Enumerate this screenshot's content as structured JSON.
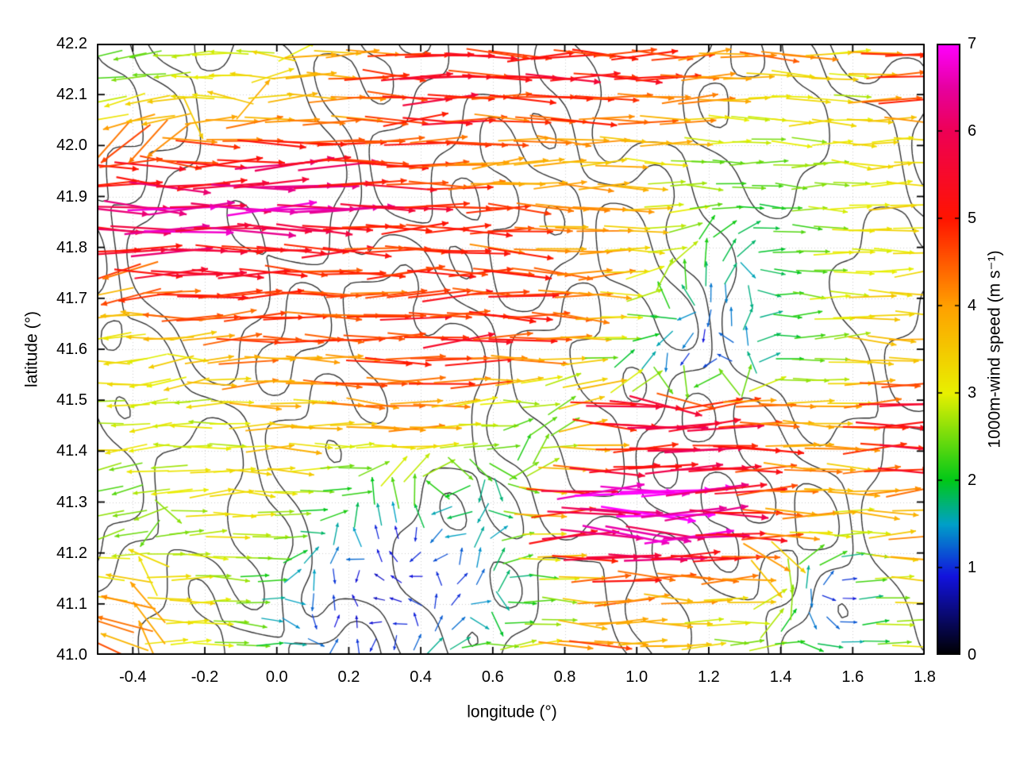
{
  "chart_data": {
    "type": "quiver",
    "title": "",
    "xlabel": "longitude (°)",
    "ylabel": "latitude (°)",
    "xlim": [
      -0.5,
      1.8
    ],
    "ylim": [
      41.0,
      42.2
    ],
    "grid": true,
    "xticks": [
      {
        "v": -0.4,
        "label": "-0.4"
      },
      {
        "v": -0.2,
        "label": "-0.2"
      },
      {
        "v": 0.0,
        "label": "0.0"
      },
      {
        "v": 0.2,
        "label": "0.2"
      },
      {
        "v": 0.4,
        "label": "0.4"
      },
      {
        "v": 0.6,
        "label": "0.6"
      },
      {
        "v": 0.8,
        "label": "0.8"
      },
      {
        "v": 1.0,
        "label": "1.0"
      },
      {
        "v": 1.2,
        "label": "1.2"
      },
      {
        "v": 1.4,
        "label": "1.4"
      },
      {
        "v": 1.6,
        "label": "1.6"
      },
      {
        "v": 1.8,
        "label": "1.8"
      }
    ],
    "yticks": [
      {
        "v": 41.0,
        "label": "41.0"
      },
      {
        "v": 41.1,
        "label": "41.1"
      },
      {
        "v": 41.2,
        "label": "41.2"
      },
      {
        "v": 41.3,
        "label": "41.3"
      },
      {
        "v": 41.4,
        "label": "41.4"
      },
      {
        "v": 41.5,
        "label": "41.5"
      },
      {
        "v": 41.6,
        "label": "41.6"
      },
      {
        "v": 41.7,
        "label": "41.7"
      },
      {
        "v": 41.8,
        "label": "41.8"
      },
      {
        "v": 41.9,
        "label": "41.9"
      },
      {
        "v": 42.0,
        "label": "42.0"
      },
      {
        "v": 42.1,
        "label": "42.1"
      },
      {
        "v": 42.2,
        "label": "42.2"
      }
    ],
    "colorbar": {
      "label": "1000m-wind speed (m s⁻¹)",
      "min": 0,
      "max": 7,
      "ticks": [
        {
          "v": 0,
          "label": "0"
        },
        {
          "v": 1,
          "label": "1"
        },
        {
          "v": 2,
          "label": "2"
        },
        {
          "v": 3,
          "label": "3"
        },
        {
          "v": 4,
          "label": "4"
        },
        {
          "v": 5,
          "label": "5"
        },
        {
          "v": 6,
          "label": "6"
        },
        {
          "v": 7,
          "label": "7"
        }
      ],
      "stops": [
        [
          0,
          "#000000"
        ],
        [
          0.9,
          "#1212dd"
        ],
        [
          1.5,
          "#00a0c8"
        ],
        [
          2,
          "#00c818"
        ],
        [
          3,
          "#e8f000"
        ],
        [
          4,
          "#ffa000"
        ],
        [
          5,
          "#ff1400"
        ],
        [
          6,
          "#ee0055"
        ],
        [
          6.5,
          "#e600a0"
        ],
        [
          7,
          "#ff00ff"
        ]
      ]
    },
    "contour_color": "#2e2e2e",
    "contour_levels": 3,
    "wind_grid": {
      "nx": 24,
      "ny": 16,
      "rows_north_to_south": true,
      "dir_convention": "0=east, 90=north",
      "speed_ms": [
        [
          2.5,
          2.2,
          2.5,
          3,
          3,
          3,
          3.5,
          4,
          4.5,
          4.5,
          5,
          5,
          4.5,
          4.5,
          5,
          5,
          4.5,
          4,
          4,
          4.5,
          4,
          3.5,
          5,
          5
        ],
        [
          2,
          2.5,
          3,
          3,
          3.5,
          3.5,
          4,
          4,
          5,
          5.5,
          5.5,
          5,
          5,
          5.5,
          5,
          5,
          4.5,
          4,
          3.5,
          3.5,
          3,
          3,
          4.5,
          5
        ],
        [
          3.5,
          4,
          4,
          4,
          4,
          4,
          4,
          4,
          4.5,
          5,
          5,
          4.5,
          4.5,
          4.5,
          4.5,
          4,
          4,
          3.5,
          3,
          3,
          3,
          3,
          3.5,
          4
        ],
        [
          4.5,
          5,
          5,
          5,
          5.5,
          6,
          6,
          5.5,
          5,
          4.5,
          4,
          4,
          4,
          4,
          3.5,
          3.5,
          3,
          2.5,
          2.5,
          2.5,
          2.5,
          3,
          3,
          3.5
        ],
        [
          5.5,
          6,
          6.5,
          6,
          6,
          6.5,
          6,
          6,
          5.5,
          5.5,
          5,
          4.5,
          4.5,
          4,
          4,
          3.5,
          3,
          2.5,
          2,
          2,
          2.5,
          3,
          3.5,
          3.5
        ],
        [
          5,
          5.5,
          6,
          6,
          5.5,
          5.5,
          5.5,
          5,
          5,
          5,
          5,
          4.5,
          4.5,
          4,
          4,
          3.5,
          3,
          2,
          2,
          2,
          2.5,
          3,
          3,
          3
        ],
        [
          4,
          4.5,
          5,
          5,
          5,
          5,
          5,
          4.5,
          4.5,
          5,
          5,
          5,
          5,
          4.5,
          4,
          3,
          2,
          1.5,
          1.5,
          2,
          2.5,
          3,
          3.5,
          3.5
        ],
        [
          3.5,
          3.5,
          4,
          4,
          4.5,
          4.5,
          4.5,
          4.5,
          5,
          5,
          5,
          5,
          5,
          4.5,
          3.5,
          2.5,
          1.5,
          1,
          1.5,
          2,
          2.5,
          3,
          3.5,
          4
        ],
        [
          3,
          3,
          3,
          3.5,
          4,
          4,
          4,
          4.5,
          4.5,
          5,
          5,
          4.5,
          4,
          3.5,
          2.5,
          1.5,
          1,
          1,
          1.5,
          2,
          2.5,
          3,
          3.5,
          3.5
        ],
        [
          3,
          3,
          3,
          3,
          3.5,
          3.5,
          3.5,
          4,
          4,
          4,
          3.5,
          3,
          2.5,
          2,
          5.5,
          6,
          6,
          5.5,
          5,
          4.5,
          4,
          3.5,
          5.5,
          6
        ],
        [
          3,
          3,
          3,
          3,
          3,
          3.5,
          3.5,
          3,
          3,
          3.5,
          3,
          2.5,
          2,
          3,
          4,
          4.5,
          5,
          5.5,
          5,
          4.5,
          4,
          4,
          5,
          5.5
        ],
        [
          2.5,
          2.5,
          3,
          3,
          3,
          3,
          2.5,
          2,
          2,
          2.5,
          2,
          1.5,
          3,
          5,
          6.5,
          7,
          7,
          6.5,
          5.5,
          4.5,
          4,
          3.5,
          4,
          4.5
        ],
        [
          2.5,
          2.5,
          2.5,
          3,
          3,
          2.5,
          2,
          1.5,
          1,
          1,
          1.5,
          1.5,
          2.5,
          5,
          6.5,
          7,
          6.5,
          6,
          5,
          4,
          3.5,
          3,
          3.5,
          4
        ],
        [
          3,
          3.5,
          3.5,
          3,
          2.5,
          2,
          1.5,
          1,
          0.8,
          1,
          1,
          1.5,
          2,
          3,
          4.5,
          5,
          5,
          4.5,
          4,
          3.5,
          1.5,
          1,
          3,
          3.5
        ],
        [
          4,
          4,
          3.5,
          3,
          2.5,
          1.5,
          1,
          0.8,
          0.8,
          1,
          1,
          1.5,
          2,
          2.5,
          3.5,
          4,
          3.5,
          3,
          3,
          2.5,
          1,
          1,
          2.5,
          3
        ],
        [
          4.5,
          4,
          3.5,
          3,
          2.5,
          2,
          1.5,
          1,
          1,
          1.5,
          2,
          2.5,
          3,
          4.5,
          5,
          4,
          3.5,
          3,
          2.5,
          2.5,
          2,
          2,
          2.5,
          3
        ]
      ],
      "dir_deg": [
        [
          190,
          185,
          180,
          185,
          175,
          170,
          355,
          0,
          5,
          0,
          0,
          355,
          0,
          5,
          0,
          0,
          0,
          5,
          0,
          355,
          0,
          0,
          0,
          0
        ],
        [
          185,
          190,
          185,
          180,
          175,
          10,
          5,
          0,
          355,
          0,
          0,
          5,
          0,
          0,
          355,
          0,
          0,
          5,
          0,
          0,
          0,
          355,
          0,
          0
        ],
        [
          200,
          195,
          190,
          0,
          5,
          0,
          355,
          0,
          0,
          5,
          0,
          0,
          0,
          355,
          0,
          5,
          0,
          0,
          355,
          0,
          0,
          0,
          5,
          0
        ],
        [
          5,
          0,
          355,
          0,
          0,
          5,
          0,
          0,
          355,
          0,
          0,
          5,
          0,
          0,
          0,
          355,
          0,
          0,
          5,
          0,
          0,
          355,
          0,
          0
        ],
        [
          0,
          355,
          0,
          5,
          0,
          0,
          355,
          0,
          0,
          5,
          0,
          0,
          355,
          0,
          0,
          0,
          5,
          0,
          0,
          355,
          0,
          0,
          5,
          0
        ],
        [
          355,
          0,
          5,
          0,
          0,
          355,
          0,
          0,
          5,
          0,
          0,
          0,
          355,
          0,
          5,
          0,
          0,
          90,
          45,
          0,
          355,
          0,
          0,
          5
        ],
        [
          185,
          190,
          0,
          5,
          0,
          0,
          355,
          0,
          0,
          5,
          0,
          0,
          0,
          355,
          0,
          5,
          120,
          90,
          270,
          0,
          355,
          0,
          0,
          5
        ],
        [
          185,
          180,
          175,
          0,
          5,
          0,
          0,
          355,
          0,
          0,
          5,
          0,
          0,
          0,
          355,
          0,
          200,
          270,
          90,
          0,
          5,
          0,
          355,
          0
        ],
        [
          180,
          185,
          190,
          0,
          0,
          5,
          0,
          0,
          355,
          0,
          0,
          5,
          0,
          0,
          0,
          80,
          270,
          200,
          120,
          0,
          0,
          5,
          0,
          355
        ],
        [
          185,
          190,
          185,
          180,
          0,
          5,
          0,
          0,
          355,
          0,
          0,
          5,
          0,
          45,
          0,
          355,
          0,
          5,
          0,
          0,
          355,
          0,
          0,
          5
        ],
        [
          190,
          185,
          180,
          0,
          5,
          0,
          355,
          0,
          0,
          5,
          0,
          0,
          90,
          0,
          355,
          0,
          5,
          0,
          0,
          355,
          0,
          0,
          5,
          0
        ],
        [
          195,
          190,
          185,
          5,
          0,
          355,
          0,
          0,
          120,
          90,
          200,
          270,
          0,
          0,
          5,
          355,
          0,
          0,
          5,
          0,
          0,
          355,
          0,
          5
        ],
        [
          200,
          195,
          0,
          5,
          0,
          0,
          355,
          120,
          90,
          270,
          200,
          45,
          0,
          5,
          0,
          355,
          0,
          5,
          0,
          0,
          355,
          0,
          0,
          5
        ],
        [
          170,
          165,
          5,
          0,
          355,
          0,
          90,
          270,
          120,
          200,
          45,
          90,
          0,
          0,
          5,
          0,
          355,
          0,
          5,
          270,
          90,
          0,
          0,
          355
        ],
        [
          160,
          170,
          0,
          5,
          0,
          355,
          270,
          90,
          200,
          120,
          45,
          270,
          0,
          355,
          0,
          5,
          0,
          0,
          355,
          90,
          270,
          0,
          5,
          0
        ],
        [
          150,
          160,
          0,
          5,
          355,
          0,
          0,
          90,
          270,
          45,
          30,
          5,
          35,
          355,
          0,
          5,
          0,
          0,
          5,
          0,
          355,
          0,
          0,
          5
        ]
      ]
    }
  }
}
